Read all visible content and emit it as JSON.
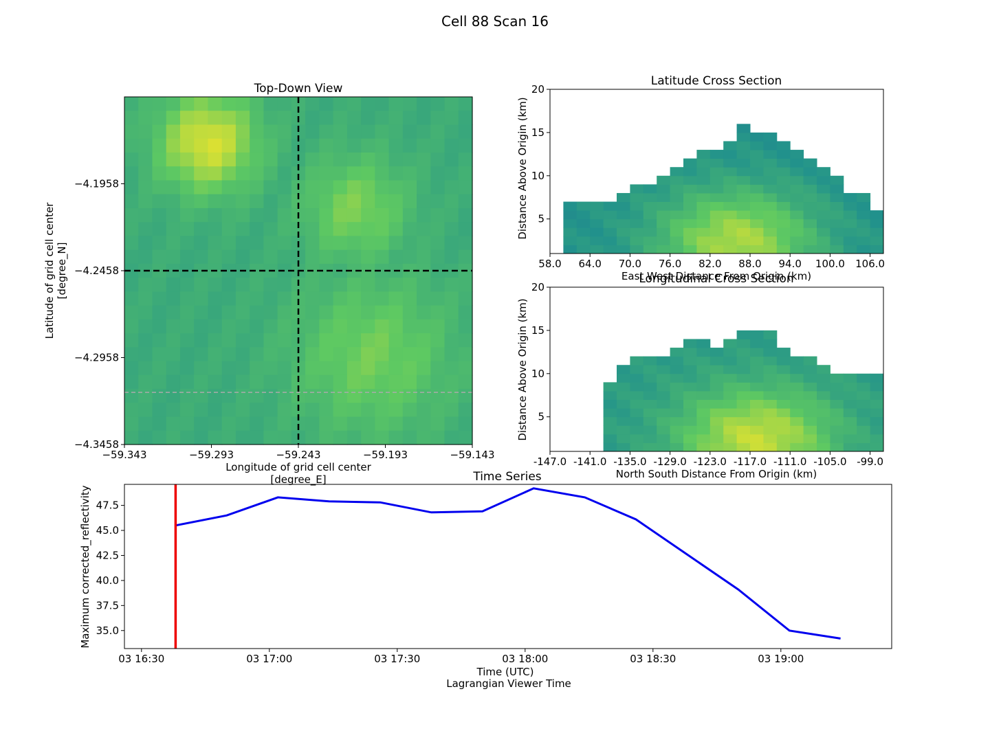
{
  "figure": {
    "title": "Cell 88 Scan 16"
  },
  "colors": {
    "line": "#0000ee",
    "marker": "#ee0000",
    "crosshair": "#000000",
    "grayline": "#aaaaaa"
  },
  "chart_data": [
    {
      "type": "heatmap",
      "title": "Top-Down View",
      "xlabel_line1": "Longitude of grid cell center",
      "xlabel_line2": "[degree_E]",
      "ylabel_line1": "Latitude of grid cell center",
      "ylabel_line2": "[degree_N]",
      "xticks": [
        "−59.343",
        "−59.293",
        "−59.243",
        "−59.193",
        "−59.143"
      ],
      "yticks": [
        "−4.1958",
        "−4.2458",
        "−4.2958",
        "−4.3458"
      ],
      "xlim": [
        -59.343,
        -59.143
      ],
      "ylim": [
        -4.3458,
        -4.1458
      ],
      "crosshair": {
        "lon": -59.243,
        "lat": -4.2458
      },
      "gray_line_lat": -4.3158,
      "colormap_range": [
        0,
        55
      ],
      "hotspots": [
        {
          "lon": -59.295,
          "lat": -4.172,
          "value": 52,
          "spread": 0.028
        },
        {
          "lon": -59.21,
          "lat": -4.21,
          "value": 44,
          "spread": 0.03
        },
        {
          "lon": -59.2,
          "lat": -4.295,
          "value": 43,
          "spread": 0.045
        }
      ],
      "base_value": 34
    },
    {
      "type": "heatmap",
      "title": "Latitude Cross Section",
      "xlabel": "East West Distance From Origin (km)",
      "ylabel": "Distance Above Origin (km)",
      "xticks": [
        "58.0",
        "64.0",
        "70.0",
        "76.0",
        "82.0",
        "88.0",
        "94.0",
        "100.0",
        "106.0"
      ],
      "yticks": [
        "5",
        "10",
        "15",
        "20"
      ],
      "xlim": [
        58,
        108
      ],
      "ylim": [
        1,
        20
      ],
      "colormap_range": [
        0,
        55
      ],
      "profile_km": [
        [
          62,
          7
        ],
        [
          64,
          7
        ],
        [
          66,
          7
        ],
        [
          68,
          8
        ],
        [
          70,
          9
        ],
        [
          72,
          9
        ],
        [
          74,
          9.5
        ],
        [
          76,
          10.5
        ],
        [
          78,
          12
        ],
        [
          80,
          13
        ],
        [
          82,
          13
        ],
        [
          84,
          14
        ],
        [
          86,
          15.5
        ],
        [
          88,
          15
        ],
        [
          90,
          15
        ],
        [
          92,
          14
        ],
        [
          94,
          13
        ],
        [
          96,
          12
        ],
        [
          98,
          11
        ],
        [
          100,
          10
        ],
        [
          102,
          8
        ],
        [
          104,
          8
        ],
        [
          106,
          6
        ],
        [
          107,
          5
        ]
      ],
      "core": {
        "x": 86,
        "z": 2,
        "value": 48
      },
      "base_value": 28
    },
    {
      "type": "heatmap",
      "title": "Longitudinal Cross Section",
      "xlabel": "North South Distance From Origin (km)",
      "ylabel": "Distance Above Origin (km)",
      "xticks": [
        "-147.0",
        "-141.0",
        "-135.0",
        "-129.0",
        "-123.0",
        "-117.0",
        "-111.0",
        "-105.0",
        "-99.0"
      ],
      "yticks": [
        "5",
        "10",
        "15",
        "20"
      ],
      "xlim": [
        -147,
        -97
      ],
      "ylim": [
        1,
        20
      ],
      "colormap_range": [
        0,
        55
      ],
      "profile_km": [
        [
          -138,
          9
        ],
        [
          -137,
          11
        ],
        [
          -135,
          12
        ],
        [
          -133,
          12
        ],
        [
          -131,
          12
        ],
        [
          -129,
          13
        ],
        [
          -127,
          14
        ],
        [
          -125,
          14
        ],
        [
          -123,
          13
        ],
        [
          -121,
          14
        ],
        [
          -119,
          15
        ],
        [
          -117,
          15
        ],
        [
          -115,
          15
        ],
        [
          -113,
          13
        ],
        [
          -111,
          12
        ],
        [
          -109,
          12
        ],
        [
          -107,
          11
        ],
        [
          -105,
          10
        ],
        [
          -103,
          10
        ],
        [
          -101,
          10
        ],
        [
          -99,
          10
        ],
        [
          -97,
          10
        ]
      ],
      "core": {
        "x": -116,
        "z": 2,
        "value": 50
      },
      "base_value": 30
    },
    {
      "type": "line",
      "title": "Time Series",
      "xlabel": "Time (UTC)",
      "xlabel_line2": "Lagrangian Viewer Time",
      "ylabel": "Maximum corrected_reflectivity",
      "xticks": [
        "03 16:30",
        "03 17:00",
        "03 17:30",
        "03 18:00",
        "03 18:30",
        "03 19:00"
      ],
      "yticks": [
        "35.0",
        "37.5",
        "40.0",
        "42.5",
        "45.0",
        "47.5"
      ],
      "xlim": [
        "16:26",
        "19:26"
      ],
      "ylim": [
        33.2,
        49.6
      ],
      "x": [
        "16:38",
        "16:50",
        "17:02",
        "17:14",
        "17:26",
        "17:38",
        "17:50",
        "18:02",
        "18:14",
        "18:26",
        "18:38",
        "18:50",
        "19:02",
        "19:14"
      ],
      "series": [
        {
          "values": [
            45.5,
            46.5,
            48.3,
            47.9,
            47.8,
            46.8,
            46.9,
            49.2,
            48.3,
            46.1,
            42.6,
            39.1,
            35.0,
            34.2
          ]
        }
      ],
      "marker_time": "16:38"
    }
  ]
}
